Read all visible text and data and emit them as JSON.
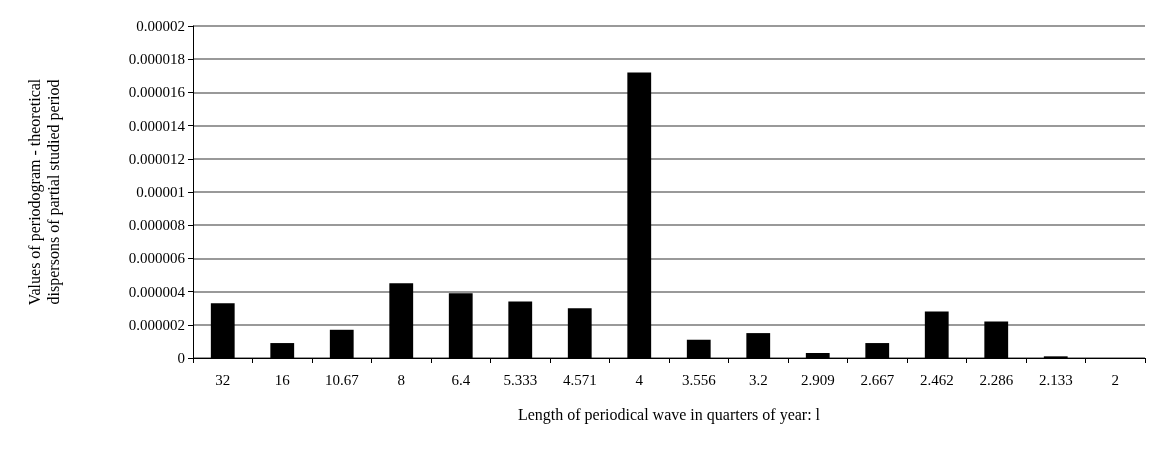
{
  "chart_data": {
    "type": "bar",
    "xlabel": "Length of periodical wave in quarters of year: l",
    "ylabel": "Values of periodogram - theoretical dispersons of partial studied period",
    "categories": [
      "32",
      "16",
      "10.67",
      "8",
      "6.4",
      "5.333",
      "4.571",
      "4",
      "3.556",
      "3.2",
      "2.909",
      "2.667",
      "2.462",
      "2.286",
      "2.133",
      "2"
    ],
    "values": [
      3.3e-06,
      9e-07,
      1.7e-06,
      4.5e-06,
      3.9e-06,
      3.4e-06,
      3e-06,
      1.72e-05,
      1.1e-06,
      1.5e-06,
      3e-07,
      9e-07,
      2.8e-06,
      2.2e-06,
      1e-07,
      0
    ],
    "color": "#000000",
    "ylim": [
      0,
      2e-05
    ],
    "yticks": [
      0,
      {
        "value": 2e-06,
        "label": "0.000002"
      },
      {
        "value": 4e-06,
        "label": "0.000004"
      },
      {
        "value": 6e-06,
        "label": "0.000006"
      },
      {
        "value": 8e-06,
        "label": "0.000008"
      },
      {
        "value": 1e-05,
        "label": "0.00001"
      },
      {
        "value": 1.2e-05,
        "label": "0.000012"
      },
      {
        "value": 1.4e-05,
        "label": "0.000014"
      },
      {
        "value": 1.6e-05,
        "label": "0.000016"
      },
      {
        "value": 1.8e-05,
        "label": "0.000018"
      },
      {
        "value": 2e-05,
        "label": "0.00002"
      }
    ],
    "grid": "y"
  }
}
